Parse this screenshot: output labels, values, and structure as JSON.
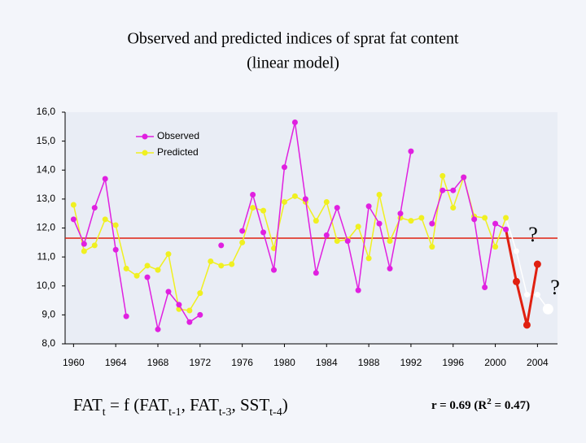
{
  "chart_data": {
    "type": "line",
    "title": "Observed and predicted indices of sprat fat content",
    "subtitle": "(linear model)",
    "x": [
      1960,
      1961,
      1962,
      1963,
      1964,
      1965,
      1966,
      1967,
      1968,
      1969,
      1970,
      1971,
      1972,
      1973,
      1974,
      1975,
      1976,
      1977,
      1978,
      1979,
      1980,
      1981,
      1982,
      1983,
      1984,
      1985,
      1986,
      1987,
      1988,
      1989,
      1990,
      1991,
      1992,
      1993,
      1994,
      1995,
      1996,
      1997,
      1998,
      1999,
      2000,
      2001,
      2002,
      2003,
      2004,
      2005
    ],
    "series": [
      {
        "name": "Observed",
        "color": "#e020e0",
        "values": [
          12.3,
          11.45,
          12.7,
          13.7,
          11.25,
          8.95,
          null,
          10.3,
          8.5,
          9.8,
          9.35,
          8.75,
          9.0,
          null,
          11.4,
          null,
          11.9,
          13.15,
          11.85,
          10.55,
          14.1,
          15.65,
          13.0,
          10.45,
          11.75,
          12.7,
          11.55,
          9.85,
          12.75,
          12.15,
          10.6,
          12.5,
          14.65,
          null,
          12.15,
          13.3,
          13.3,
          13.75,
          12.3,
          9.95,
          12.15,
          11.95,
          null,
          null,
          null,
          null
        ]
      },
      {
        "name": "Predicted",
        "color": "#f0f020",
        "values": [
          12.8,
          11.2,
          11.4,
          12.3,
          12.1,
          10.6,
          10.35,
          10.7,
          10.55,
          11.1,
          9.2,
          9.15,
          9.75,
          10.85,
          10.7,
          10.75,
          11.5,
          12.7,
          12.6,
          11.3,
          12.9,
          13.1,
          12.9,
          12.25,
          12.9,
          11.55,
          11.6,
          12.05,
          10.95,
          13.15,
          11.55,
          12.35,
          12.25,
          12.35,
          11.35,
          13.8,
          12.7,
          13.75,
          12.4,
          12.35,
          11.35,
          12.35,
          null,
          null,
          null,
          null
        ]
      },
      {
        "color": "#e02010",
        "values": [
          null,
          null,
          null,
          null,
          null,
          null,
          null,
          null,
          null,
          null,
          null,
          null,
          null,
          null,
          null,
          null,
          null,
          null,
          null,
          null,
          null,
          null,
          null,
          null,
          null,
          null,
          null,
          null,
          null,
          null,
          null,
          null,
          null,
          null,
          null,
          null,
          null,
          null,
          null,
          null,
          null,
          null,
          10.15,
          8.65,
          10.75,
          null
        ]
      },
      {
        "color": "#ffffff",
        "values": [
          null,
          null,
          null,
          null,
          null,
          null,
          null,
          null,
          null,
          null,
          null,
          null,
          null,
          null,
          null,
          null,
          null,
          null,
          null,
          null,
          null,
          null,
          null,
          null,
          null,
          null,
          null,
          null,
          null,
          null,
          null,
          null,
          null,
          null,
          null,
          null,
          null,
          null,
          null,
          null,
          null,
          null,
          11.2,
          9.7,
          9.7,
          9.2
        ]
      }
    ],
    "xlim": [
      1959.2,
      2005.9
    ],
    "xticks": [
      1960,
      1964,
      1968,
      1972,
      1976,
      1980,
      1984,
      1988,
      1992,
      1996,
      2000,
      2004
    ],
    "ylim": [
      8,
      16
    ],
    "yticks": [
      {
        "value": 8,
        "label": "8,0"
      },
      {
        "value": 9,
        "label": "9,0"
      },
      {
        "value": 10,
        "label": "10,0"
      },
      {
        "value": 11,
        "label": "11,0"
      },
      {
        "value": 12,
        "label": "12,0"
      },
      {
        "value": 13,
        "label": "13,0"
      },
      {
        "value": 14,
        "label": "14,0"
      },
      {
        "value": 15,
        "label": "15,0"
      },
      {
        "value": 16,
        "label": "16,0"
      }
    ],
    "reference_line": {
      "value": 11.65,
      "color": "#e02010"
    },
    "annotations": [
      "?",
      "?"
    ],
    "formula": [
      "FAT",
      "t",
      " = f (FAT",
      "t-1",
      ", FAT",
      "t-3",
      ", SST",
      "t-4",
      ")"
    ],
    "statistic": [
      "r = 0.69 (R",
      "2",
      " = 0.47)"
    ]
  }
}
